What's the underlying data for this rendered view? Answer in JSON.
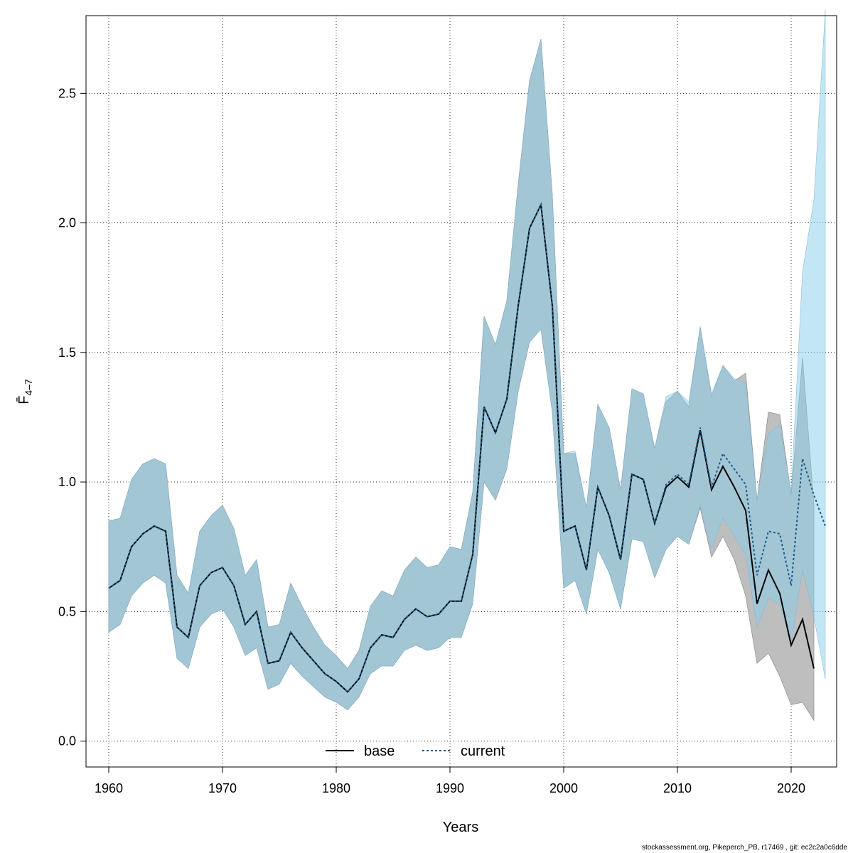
{
  "footer": "stockassessment.org, Pikeperch_PB, r17469 , git: ec2c2a0c6dde",
  "chart_data": {
    "type": "line",
    "xlabel": "Years",
    "ylabel": "F̄",
    "ylabel_subscript": "4–7",
    "xlim": [
      1958,
      2024
    ],
    "ylim": [
      -0.1,
      2.8
    ],
    "xticks": [
      1960,
      1970,
      1980,
      1990,
      2000,
      2010,
      2020
    ],
    "yticks": [
      0.0,
      0.5,
      1.0,
      1.5,
      2.0,
      2.5
    ],
    "ytick_labels": [
      "0.0",
      "0.5",
      "1.0",
      "1.5",
      "2.0",
      "2.5"
    ],
    "grid": true,
    "legend_position": "bottom-center",
    "colors": {
      "base_line": "#000000",
      "base_band": "#bebebe",
      "current_line": "#1a5b8a",
      "current_band": "#87ceeb"
    },
    "series": [
      {
        "name": "base",
        "line_style": "solid",
        "x": [
          1960,
          1961,
          1962,
          1963,
          1964,
          1965,
          1966,
          1967,
          1968,
          1969,
          1970,
          1971,
          1972,
          1973,
          1974,
          1975,
          1976,
          1977,
          1978,
          1979,
          1980,
          1981,
          1982,
          1983,
          1984,
          1985,
          1986,
          1987,
          1988,
          1989,
          1990,
          1991,
          1992,
          1993,
          1994,
          1995,
          1996,
          1997,
          1998,
          1999,
          2000,
          2001,
          2002,
          2003,
          2004,
          2005,
          2006,
          2007,
          2008,
          2009,
          2010,
          2011,
          2012,
          2013,
          2014,
          2015,
          2016,
          2017,
          2018,
          2019,
          2020,
          2021,
          2022
        ],
        "values": [
          0.59,
          0.62,
          0.75,
          0.8,
          0.83,
          0.81,
          0.44,
          0.4,
          0.6,
          0.65,
          0.67,
          0.6,
          0.45,
          0.5,
          0.3,
          0.31,
          0.42,
          0.36,
          0.31,
          0.26,
          0.23,
          0.19,
          0.24,
          0.36,
          0.41,
          0.4,
          0.47,
          0.51,
          0.48,
          0.49,
          0.54,
          0.54,
          0.72,
          1.29,
          1.19,
          1.32,
          1.68,
          1.98,
          2.07,
          1.68,
          0.81,
          0.83,
          0.66,
          0.98,
          0.87,
          0.7,
          1.03,
          1.01,
          0.84,
          0.98,
          1.02,
          0.98,
          1.2,
          0.97,
          1.06,
          0.98,
          0.89,
          0.53,
          0.66,
          0.57,
          0.37,
          0.47,
          0.28
        ],
        "lower": [
          0.42,
          0.45,
          0.56,
          0.61,
          0.64,
          0.61,
          0.32,
          0.28,
          0.44,
          0.49,
          0.51,
          0.44,
          0.33,
          0.36,
          0.2,
          0.22,
          0.3,
          0.25,
          0.21,
          0.17,
          0.15,
          0.12,
          0.17,
          0.26,
          0.29,
          0.29,
          0.35,
          0.37,
          0.35,
          0.36,
          0.4,
          0.4,
          0.53,
          1.0,
          0.93,
          1.05,
          1.35,
          1.54,
          1.59,
          1.27,
          0.59,
          0.62,
          0.49,
          0.74,
          0.65,
          0.51,
          0.78,
          0.77,
          0.63,
          0.74,
          0.79,
          0.76,
          0.9,
          0.71,
          0.79,
          0.7,
          0.56,
          0.3,
          0.34,
          0.25,
          0.14,
          0.15,
          0.08
        ],
        "upper": [
          0.85,
          0.86,
          1.01,
          1.07,
          1.09,
          1.07,
          0.64,
          0.57,
          0.81,
          0.87,
          0.91,
          0.82,
          0.64,
          0.7,
          0.44,
          0.45,
          0.61,
          0.52,
          0.44,
          0.37,
          0.33,
          0.28,
          0.35,
          0.52,
          0.58,
          0.56,
          0.66,
          0.71,
          0.67,
          0.68,
          0.75,
          0.74,
          0.96,
          1.64,
          1.53,
          1.7,
          2.15,
          2.55,
          2.71,
          2.11,
          1.11,
          1.11,
          0.9,
          1.3,
          1.21,
          0.97,
          1.36,
          1.34,
          1.13,
          1.31,
          1.35,
          1.29,
          1.6,
          1.33,
          1.45,
          1.39,
          1.42,
          0.93,
          1.27,
          1.26,
          0.95,
          1.48,
          0.91
        ]
      },
      {
        "name": "current",
        "line_style": "dotted",
        "x": [
          1960,
          1961,
          1962,
          1963,
          1964,
          1965,
          1966,
          1967,
          1968,
          1969,
          1970,
          1971,
          1972,
          1973,
          1974,
          1975,
          1976,
          1977,
          1978,
          1979,
          1980,
          1981,
          1982,
          1983,
          1984,
          1985,
          1986,
          1987,
          1988,
          1989,
          1990,
          1991,
          1992,
          1993,
          1994,
          1995,
          1996,
          1997,
          1998,
          1999,
          2000,
          2001,
          2002,
          2003,
          2004,
          2005,
          2006,
          2007,
          2008,
          2009,
          2010,
          2011,
          2012,
          2013,
          2014,
          2015,
          2016,
          2017,
          2018,
          2019,
          2020,
          2021,
          2022,
          2023
        ],
        "values": [
          0.59,
          0.62,
          0.75,
          0.8,
          0.83,
          0.81,
          0.44,
          0.4,
          0.6,
          0.65,
          0.67,
          0.6,
          0.45,
          0.5,
          0.3,
          0.31,
          0.42,
          0.36,
          0.31,
          0.26,
          0.23,
          0.19,
          0.24,
          0.36,
          0.41,
          0.4,
          0.47,
          0.51,
          0.48,
          0.49,
          0.54,
          0.54,
          0.72,
          1.29,
          1.19,
          1.32,
          1.68,
          1.98,
          2.07,
          1.68,
          0.81,
          0.83,
          0.66,
          0.98,
          0.87,
          0.7,
          1.03,
          1.01,
          0.84,
          0.99,
          1.03,
          0.99,
          1.21,
          0.98,
          1.11,
          1.05,
          0.99,
          0.64,
          0.81,
          0.8,
          0.6,
          1.09,
          0.95,
          0.83
        ],
        "lower": [
          0.42,
          0.45,
          0.56,
          0.61,
          0.64,
          0.61,
          0.32,
          0.28,
          0.44,
          0.49,
          0.51,
          0.44,
          0.33,
          0.36,
          0.2,
          0.22,
          0.3,
          0.25,
          0.21,
          0.17,
          0.15,
          0.12,
          0.17,
          0.26,
          0.29,
          0.29,
          0.35,
          0.37,
          0.35,
          0.36,
          0.4,
          0.4,
          0.53,
          1.0,
          0.93,
          1.05,
          1.35,
          1.54,
          1.59,
          1.27,
          0.59,
          0.62,
          0.49,
          0.74,
          0.65,
          0.51,
          0.78,
          0.77,
          0.63,
          0.74,
          0.79,
          0.76,
          0.91,
          0.74,
          0.86,
          0.79,
          0.72,
          0.44,
          0.55,
          0.53,
          0.38,
          0.66,
          0.48,
          0.24
        ],
        "upper": [
          0.85,
          0.86,
          1.01,
          1.07,
          1.09,
          1.07,
          0.64,
          0.57,
          0.81,
          0.87,
          0.91,
          0.82,
          0.64,
          0.7,
          0.44,
          0.45,
          0.61,
          0.52,
          0.44,
          0.37,
          0.33,
          0.28,
          0.35,
          0.52,
          0.58,
          0.56,
          0.66,
          0.71,
          0.67,
          0.68,
          0.75,
          0.74,
          0.96,
          1.64,
          1.53,
          1.7,
          2.15,
          2.55,
          2.71,
          2.11,
          1.11,
          1.12,
          0.9,
          1.3,
          1.21,
          0.97,
          1.36,
          1.34,
          1.13,
          1.33,
          1.35,
          1.31,
          1.6,
          1.34,
          1.45,
          1.4,
          1.38,
          0.93,
          1.19,
          1.22,
          0.96,
          1.81,
          2.09,
          2.82
        ]
      }
    ]
  }
}
